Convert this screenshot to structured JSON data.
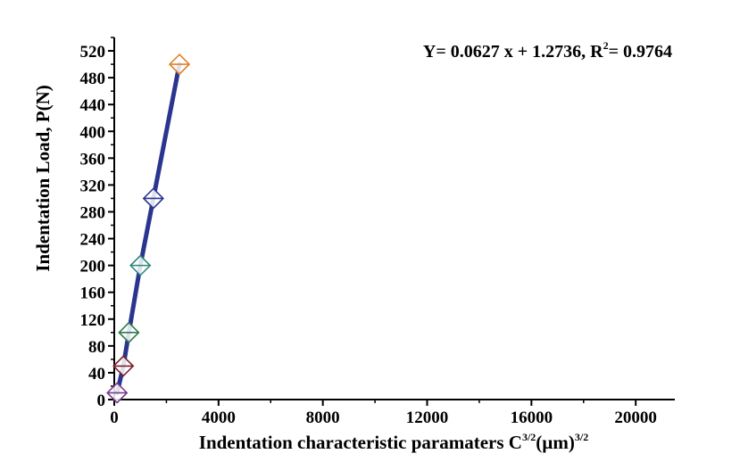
{
  "chart_data": {
    "type": "scatter",
    "title": "",
    "xlabel": {
      "main": "Indentation characteristic paramaters C",
      "main_sup": "3/2",
      "unit": "(µm)",
      "unit_sup": "3/2"
    },
    "ylabel": "Indentation Load, P(N)",
    "xlim": [
      0,
      21500
    ],
    "ylim": [
      0,
      540
    ],
    "x_ticks": [
      0,
      4000,
      8000,
      12000,
      16000,
      20000
    ],
    "y_ticks": [
      0,
      40,
      80,
      120,
      160,
      200,
      240,
      280,
      320,
      360,
      400,
      440,
      480,
      520
    ],
    "grid": false,
    "equation": {
      "text": "Y= 0.0627 x + 1.2736, R",
      "sup": "2",
      "tail": "= 0.9764"
    },
    "line_color": "#2b3590",
    "points": [
      {
        "x": 110,
        "y": 10,
        "color": "#7a3b8c"
      },
      {
        "x": 350,
        "y": 50,
        "color": "#7a1f2b"
      },
      {
        "x": 560,
        "y": 100,
        "color": "#2e7a4e"
      },
      {
        "x": 1000,
        "y": 200,
        "color": "#2a8a7a"
      },
      {
        "x": 1500,
        "y": 300,
        "color": "#2b3590"
      },
      {
        "x": 2500,
        "y": 500,
        "color": "#e0802a"
      }
    ]
  }
}
